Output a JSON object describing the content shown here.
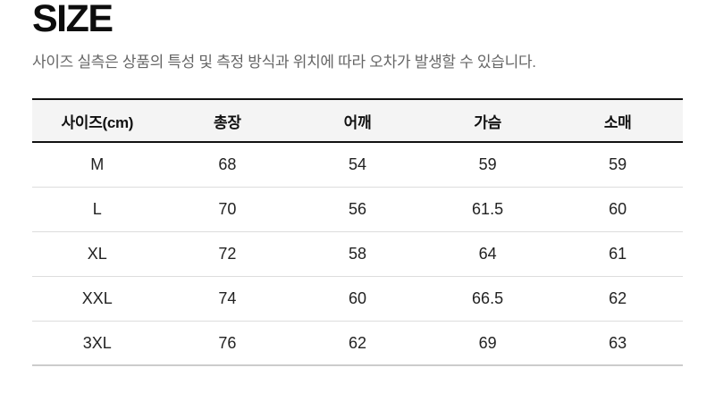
{
  "page": {
    "title": "SIZE",
    "subtitle": "사이즈 실측은 상품의 특성 및 측정 방식과 위치에 따라 오차가 발생할 수 있습니다."
  },
  "size_table": {
    "columns": [
      "사이즈(cm)",
      "총장",
      "어깨",
      "가슴",
      "소매"
    ],
    "rows": [
      {
        "size": "M",
        "values": [
          "68",
          "54",
          "59",
          "59"
        ]
      },
      {
        "size": "L",
        "values": [
          "70",
          "56",
          "61.5",
          "60"
        ]
      },
      {
        "size": "XL",
        "values": [
          "72",
          "58",
          "64",
          "61"
        ]
      },
      {
        "size": "XXL",
        "values": [
          "74",
          "60",
          "66.5",
          "62"
        ]
      },
      {
        "size": "3XL",
        "values": [
          "76",
          "62",
          "69",
          "63"
        ]
      }
    ]
  },
  "colors": {
    "title_text": "#0d0d0d",
    "subtitle_text": "#666666",
    "header_background": "#f4f4f4",
    "header_border": "#111111",
    "row_separator": "#dddddd",
    "table_bottom_border": "#cccccc",
    "cell_text": "#222222"
  }
}
